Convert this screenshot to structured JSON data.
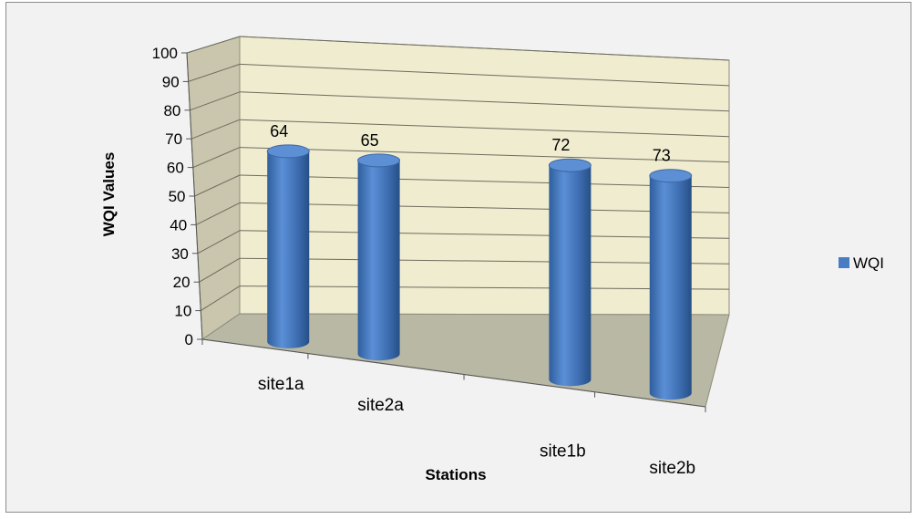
{
  "chart_data": {
    "type": "bar",
    "style": "3d-cylinder",
    "categories": [
      "site1a",
      "site2a",
      "site1b",
      "site2b"
    ],
    "series": [
      {
        "name": "WQI",
        "values": [
          64,
          65,
          72,
          73
        ],
        "color": "#4a7cc4"
      }
    ],
    "data_labels": [
      "64",
      "65",
      "72",
      "73"
    ],
    "title": "",
    "xlabel": "Stations",
    "ylabel": "WQI Values",
    "ylim": [
      0,
      100
    ],
    "y_ticks": [
      "0",
      "10",
      "20",
      "30",
      "40",
      "50",
      "60",
      "70",
      "80",
      "90",
      "100"
    ],
    "grid": true,
    "legend": {
      "position": "right",
      "entries": [
        "WQI"
      ]
    },
    "colors": {
      "wall": "#efecd0",
      "floor": "#b8b8a4",
      "side_wall": "#c9c6ad",
      "background": "#f2f2f2"
    }
  }
}
